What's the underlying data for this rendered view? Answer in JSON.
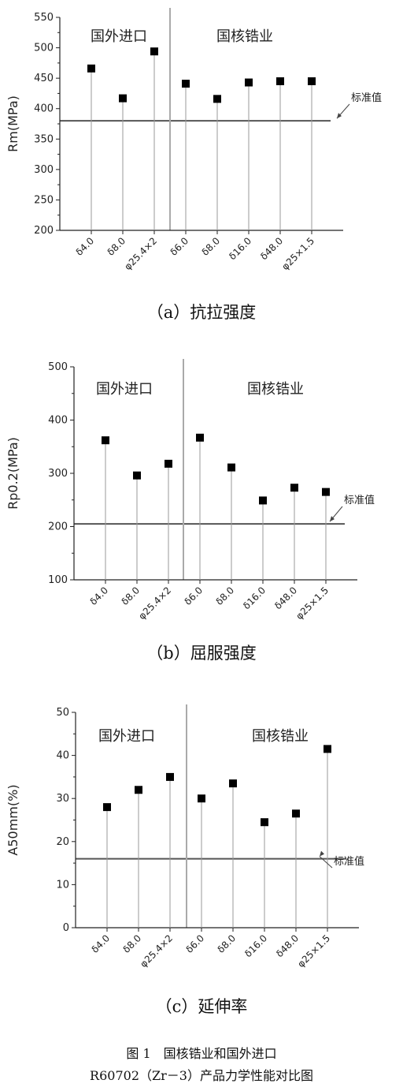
{
  "chart_data": [
    {
      "type": "scatter",
      "subtype": "stem",
      "categories": [
        "δ4.0",
        "δ8.0",
        "φ25.4×2",
        "δ6.0",
        "δ8.0",
        "δ16.0",
        "δ48.0",
        "φ25×1.5"
      ],
      "series": [
        {
          "values": [
            466,
            417,
            494,
            441,
            416,
            443,
            445,
            445
          ]
        }
      ],
      "ylabel": "Rm(MPa)",
      "ylim": [
        200,
        550
      ],
      "yticks": [
        200,
        250,
        300,
        350,
        400,
        450,
        500,
        550
      ],
      "standard_value": 380,
      "standard_label": "标准值",
      "groups": [
        {
          "label": "国外进口",
          "from": 0,
          "to": 2
        },
        {
          "label": "国核锆业",
          "from": 3,
          "to": 7
        }
      ],
      "caption": "（a）抗拉强度"
    },
    {
      "type": "scatter",
      "subtype": "stem",
      "categories": [
        "δ4.0",
        "δ8.0",
        "φ25.4×2",
        "δ6.0",
        "δ8.0",
        "δ16.0",
        "δ48.0",
        "φ25×1.5"
      ],
      "series": [
        {
          "values": [
            362,
            296,
            318,
            367,
            311,
            249,
            273,
            265
          ]
        }
      ],
      "ylabel": "Rp0.2(MPa)",
      "ylim": [
        100,
        500
      ],
      "yticks": [
        100,
        200,
        300,
        400,
        500
      ],
      "standard_value": 205,
      "standard_label": "标准值",
      "groups": [
        {
          "label": "国外进口",
          "from": 0,
          "to": 2
        },
        {
          "label": "国核锆业",
          "from": 3,
          "to": 7
        }
      ],
      "caption": "（b）屈服强度"
    },
    {
      "type": "scatter",
      "subtype": "stem",
      "categories": [
        "δ4.0",
        "δ8.0",
        "φ25.4×2",
        "δ6.0",
        "δ8.0",
        "δ16.0",
        "δ48.0",
        "φ25×1.5"
      ],
      "series": [
        {
          "values": [
            28,
            32,
            35,
            30,
            33.5,
            24.5,
            26.5,
            41.5
          ]
        }
      ],
      "ylabel": "A50mm(%)",
      "ylim": [
        0,
        50
      ],
      "yticks": [
        0,
        10,
        20,
        30,
        40,
        50
      ],
      "standard_value": 16,
      "standard_label": "标准值",
      "groups": [
        {
          "label": "国外进口",
          "from": 0,
          "to": 2
        },
        {
          "label": "国核锆业",
          "from": 3,
          "to": 7
        }
      ],
      "caption": "（c）延伸率"
    }
  ],
  "figure_caption": {
    "line1": "图 1　国核锆业和国外进口",
    "line2": "R60702（Zr－3）产品力学性能对比图"
  }
}
